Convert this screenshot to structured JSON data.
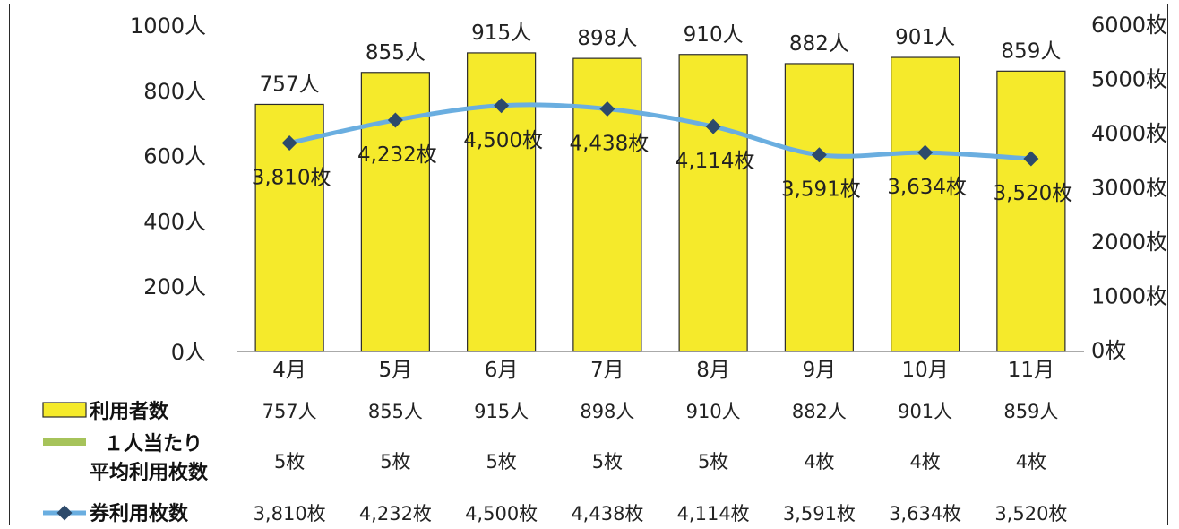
{
  "chart_data": {
    "type": "bar",
    "categories": [
      "4月",
      "5月",
      "6月",
      "7月",
      "8月",
      "9月",
      "10月",
      "11月"
    ],
    "series": [
      {
        "name": "利用者数",
        "type": "bar",
        "axis": "left",
        "values": [
          757,
          855,
          915,
          898,
          910,
          882,
          901,
          859
        ],
        "labels": [
          "757人",
          "855人",
          "915人",
          "898人",
          "910人",
          "882人",
          "901人",
          "859人"
        ],
        "color": "#f5ea2b"
      },
      {
        "name": "１人当たり平均利用枚数",
        "name_lines": [
          "１人当たり",
          "平均利用枚数"
        ],
        "type": "table-only",
        "values": [
          5,
          5,
          5,
          5,
          5,
          4,
          4,
          4
        ],
        "labels": [
          "5枚",
          "5枚",
          "5枚",
          "5枚",
          "5枚",
          "4枚",
          "4枚",
          "4枚"
        ],
        "color": "#a6c35a"
      },
      {
        "name": "券利用枚数",
        "type": "line",
        "axis": "right",
        "values": [
          3810,
          4232,
          4500,
          4438,
          4114,
          3591,
          3634,
          3520
        ],
        "labels": [
          "3,810枚",
          "4,232枚",
          "4,500枚",
          "4,438枚",
          "4,114枚",
          "3,591枚",
          "3,634枚",
          "3,520枚"
        ],
        "color": "#6aaee0",
        "marker_color": "#2d4a6b"
      }
    ],
    "y_left": {
      "ylim": [
        0,
        1000
      ],
      "ticks": [
        0,
        200,
        400,
        600,
        800,
        1000
      ],
      "tick_labels": [
        "0人",
        "200人",
        "400人",
        "600人",
        "800人",
        "1000人"
      ]
    },
    "y_right": {
      "ylim": [
        0,
        6000
      ],
      "ticks": [
        0,
        1000,
        2000,
        3000,
        4000,
        5000,
        6000
      ],
      "tick_labels": [
        "0枚",
        "1000枚",
        "2000枚",
        "3000枚",
        "4000枚",
        "5000枚",
        "6000枚"
      ]
    },
    "grid": false,
    "legend": "data-table-below"
  }
}
